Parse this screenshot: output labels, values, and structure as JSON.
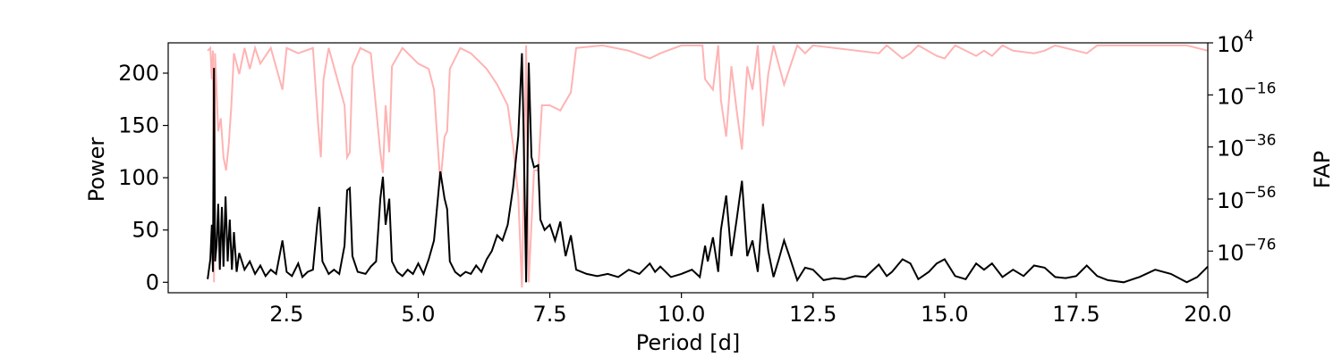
{
  "chart_data": {
    "type": "line",
    "title": "",
    "xlabel": "Period [d]",
    "ylabel": "Power",
    "ylabel_right": "FAP",
    "xlim": [
      0.25,
      20.0
    ],
    "ylim": [
      -10,
      229
    ],
    "ylim_right_log10": [
      -92,
      4
    ],
    "right_axis_scale": "log",
    "grid": false,
    "legend": "none",
    "x_ticks": [
      2.5,
      5.0,
      7.5,
      10.0,
      12.5,
      15.0,
      17.5,
      20.0
    ],
    "x_tick_labels": [
      "2.5",
      "5.0",
      "7.5",
      "10.0",
      "12.5",
      "15.0",
      "17.5",
      "20.0"
    ],
    "y_ticks": [
      0,
      50,
      100,
      150,
      200
    ],
    "y_tick_labels": [
      "0",
      "50",
      "100",
      "150",
      "200"
    ],
    "y_right_ticks_log10": [
      4,
      -16,
      -36,
      -56,
      -76
    ],
    "y_right_tick_labels": [
      {
        "base": "10",
        "exp": "4"
      },
      {
        "base": "10",
        "exp": "−16"
      },
      {
        "base": "10",
        "exp": "−36"
      },
      {
        "base": "10",
        "exp": "−56"
      },
      {
        "base": "10",
        "exp": "−76"
      }
    ],
    "series": [
      {
        "axis": "left",
        "color": "#000000",
        "points": [
          [
            1.0,
            3
          ],
          [
            1.05,
            22
          ],
          [
            1.08,
            55
          ],
          [
            1.1,
            10
          ],
          [
            1.12,
            205
          ],
          [
            1.14,
            20
          ],
          [
            1.17,
            35
          ],
          [
            1.2,
            75
          ],
          [
            1.23,
            12
          ],
          [
            1.27,
            72
          ],
          [
            1.3,
            15
          ],
          [
            1.34,
            82
          ],
          [
            1.38,
            20
          ],
          [
            1.42,
            60
          ],
          [
            1.46,
            12
          ],
          [
            1.5,
            48
          ],
          [
            1.55,
            10
          ],
          [
            1.6,
            28
          ],
          [
            1.7,
            12
          ],
          [
            1.8,
            20
          ],
          [
            1.9,
            8
          ],
          [
            2.0,
            16
          ],
          [
            2.1,
            6
          ],
          [
            2.2,
            12
          ],
          [
            2.3,
            8
          ],
          [
            2.42,
            40
          ],
          [
            2.5,
            10
          ],
          [
            2.6,
            6
          ],
          [
            2.72,
            18
          ],
          [
            2.8,
            5
          ],
          [
            2.9,
            10
          ],
          [
            3.0,
            12
          ],
          [
            3.08,
            55
          ],
          [
            3.12,
            72
          ],
          [
            3.18,
            20
          ],
          [
            3.3,
            8
          ],
          [
            3.4,
            12
          ],
          [
            3.5,
            8
          ],
          [
            3.6,
            35
          ],
          [
            3.65,
            88
          ],
          [
            3.7,
            90
          ],
          [
            3.75,
            25
          ],
          [
            3.85,
            10
          ],
          [
            4.0,
            8
          ],
          [
            4.1,
            15
          ],
          [
            4.2,
            20
          ],
          [
            4.28,
            80
          ],
          [
            4.33,
            101
          ],
          [
            4.38,
            55
          ],
          [
            4.45,
            80
          ],
          [
            4.5,
            20
          ],
          [
            4.6,
            10
          ],
          [
            4.7,
            6
          ],
          [
            4.8,
            12
          ],
          [
            4.9,
            8
          ],
          [
            5.0,
            18
          ],
          [
            5.1,
            8
          ],
          [
            5.2,
            22
          ],
          [
            5.3,
            40
          ],
          [
            5.42,
            106
          ],
          [
            5.5,
            80
          ],
          [
            5.55,
            70
          ],
          [
            5.6,
            20
          ],
          [
            5.7,
            10
          ],
          [
            5.8,
            6
          ],
          [
            5.9,
            10
          ],
          [
            6.0,
            8
          ],
          [
            6.1,
            16
          ],
          [
            6.2,
            10
          ],
          [
            6.3,
            22
          ],
          [
            6.4,
            30
          ],
          [
            6.5,
            45
          ],
          [
            6.6,
            40
          ],
          [
            6.7,
            55
          ],
          [
            6.8,
            90
          ],
          [
            6.9,
            140
          ],
          [
            6.97,
            219
          ],
          [
            7.0,
            150
          ],
          [
            7.05,
            0
          ],
          [
            7.1,
            210
          ],
          [
            7.15,
            120
          ],
          [
            7.2,
            110
          ],
          [
            7.28,
            112
          ],
          [
            7.32,
            60
          ],
          [
            7.4,
            50
          ],
          [
            7.5,
            55
          ],
          [
            7.6,
            40
          ],
          [
            7.7,
            58
          ],
          [
            7.8,
            25
          ],
          [
            7.9,
            45
          ],
          [
            8.0,
            12
          ],
          [
            8.2,
            8
          ],
          [
            8.4,
            6
          ],
          [
            8.6,
            8
          ],
          [
            8.8,
            5
          ],
          [
            9.0,
            12
          ],
          [
            9.2,
            8
          ],
          [
            9.4,
            18
          ],
          [
            9.5,
            10
          ],
          [
            9.6,
            15
          ],
          [
            9.8,
            5
          ],
          [
            10.0,
            8
          ],
          [
            10.2,
            12
          ],
          [
            10.35,
            5
          ],
          [
            10.45,
            35
          ],
          [
            10.5,
            20
          ],
          [
            10.6,
            43
          ],
          [
            10.7,
            10
          ],
          [
            10.75,
            50
          ],
          [
            10.85,
            83
          ],
          [
            10.95,
            25
          ],
          [
            11.05,
            60
          ],
          [
            11.15,
            97
          ],
          [
            11.25,
            25
          ],
          [
            11.35,
            40
          ],
          [
            11.45,
            10
          ],
          [
            11.55,
            75
          ],
          [
            11.65,
            30
          ],
          [
            11.75,
            5
          ],
          [
            11.85,
            22
          ],
          [
            11.95,
            40
          ],
          [
            12.05,
            25
          ],
          [
            12.2,
            2
          ],
          [
            12.35,
            14
          ],
          [
            12.5,
            12
          ],
          [
            12.7,
            2
          ],
          [
            12.9,
            4
          ],
          [
            13.1,
            3
          ],
          [
            13.3,
            6
          ],
          [
            13.5,
            5
          ],
          [
            13.75,
            17
          ],
          [
            13.9,
            6
          ],
          [
            14.0,
            10
          ],
          [
            14.2,
            22
          ],
          [
            14.35,
            18
          ],
          [
            14.5,
            3
          ],
          [
            14.7,
            10
          ],
          [
            14.85,
            18
          ],
          [
            15.0,
            22
          ],
          [
            15.2,
            6
          ],
          [
            15.4,
            3
          ],
          [
            15.6,
            18
          ],
          [
            15.75,
            12
          ],
          [
            15.9,
            18
          ],
          [
            16.1,
            5
          ],
          [
            16.3,
            12
          ],
          [
            16.5,
            6
          ],
          [
            16.7,
            16
          ],
          [
            16.9,
            14
          ],
          [
            17.1,
            5
          ],
          [
            17.3,
            4
          ],
          [
            17.5,
            6
          ],
          [
            17.7,
            16
          ],
          [
            17.9,
            6
          ],
          [
            18.1,
            2
          ],
          [
            18.4,
            0
          ],
          [
            18.7,
            5
          ],
          [
            19.0,
            12
          ],
          [
            19.3,
            8
          ],
          [
            19.6,
            0
          ],
          [
            19.8,
            5
          ],
          [
            20.0,
            15
          ]
        ]
      },
      {
        "axis": "right",
        "color": "#ffb3b3",
        "points_log10": [
          [
            1.0,
            1
          ],
          [
            1.05,
            2
          ],
          [
            1.08,
            -10
          ],
          [
            1.1,
            1
          ],
          [
            1.12,
            -88
          ],
          [
            1.14,
            0
          ],
          [
            1.2,
            -30
          ],
          [
            1.25,
            -25
          ],
          [
            1.3,
            -40
          ],
          [
            1.35,
            -45
          ],
          [
            1.4,
            -35
          ],
          [
            1.45,
            -20
          ],
          [
            1.5,
            0
          ],
          [
            1.6,
            -8
          ],
          [
            1.7,
            2
          ],
          [
            1.8,
            -6
          ],
          [
            1.9,
            2
          ],
          [
            2.0,
            -4
          ],
          [
            2.2,
            2
          ],
          [
            2.42,
            -14
          ],
          [
            2.5,
            2
          ],
          [
            2.72,
            0
          ],
          [
            3.0,
            2
          ],
          [
            3.1,
            -28
          ],
          [
            3.15,
            -40
          ],
          [
            3.2,
            -10
          ],
          [
            3.3,
            2
          ],
          [
            3.6,
            -20
          ],
          [
            3.65,
            -40
          ],
          [
            3.7,
            -38
          ],
          [
            3.75,
            -5
          ],
          [
            3.9,
            2
          ],
          [
            4.1,
            0
          ],
          [
            4.28,
            -38
          ],
          [
            4.33,
            -46
          ],
          [
            4.38,
            -20
          ],
          [
            4.45,
            -38
          ],
          [
            4.5,
            -5
          ],
          [
            4.7,
            2
          ],
          [
            5.0,
            -4
          ],
          [
            5.2,
            -6
          ],
          [
            5.3,
            -14
          ],
          [
            5.42,
            -50
          ],
          [
            5.5,
            -32
          ],
          [
            5.55,
            -30
          ],
          [
            5.6,
            -6
          ],
          [
            5.8,
            2
          ],
          [
            6.0,
            0
          ],
          [
            6.3,
            -6
          ],
          [
            6.5,
            -12
          ],
          [
            6.7,
            -20
          ],
          [
            6.8,
            -35
          ],
          [
            6.9,
            -55
          ],
          [
            6.97,
            -90
          ],
          [
            7.05,
            3
          ],
          [
            7.1,
            -88
          ],
          [
            7.2,
            -45
          ],
          [
            7.28,
            -45
          ],
          [
            7.35,
            -20
          ],
          [
            7.5,
            -20
          ],
          [
            7.7,
            -22
          ],
          [
            7.9,
            -15
          ],
          [
            8.0,
            2
          ],
          [
            8.5,
            3
          ],
          [
            9.0,
            1
          ],
          [
            9.4,
            -2
          ],
          [
            9.6,
            0
          ],
          [
            10.0,
            3
          ],
          [
            10.4,
            3
          ],
          [
            10.45,
            -10
          ],
          [
            10.6,
            -14
          ],
          [
            10.7,
            3
          ],
          [
            10.75,
            -18
          ],
          [
            10.85,
            -32
          ],
          [
            10.95,
            -5
          ],
          [
            11.05,
            -22
          ],
          [
            11.15,
            -37
          ],
          [
            11.25,
            -5
          ],
          [
            11.35,
            -14
          ],
          [
            11.45,
            3
          ],
          [
            11.55,
            -28
          ],
          [
            11.65,
            -8
          ],
          [
            11.75,
            3
          ],
          [
            11.95,
            -12
          ],
          [
            12.05,
            -6
          ],
          [
            12.2,
            3
          ],
          [
            12.35,
            0
          ],
          [
            12.5,
            3
          ],
          [
            13.75,
            0
          ],
          [
            13.9,
            3
          ],
          [
            14.2,
            -2
          ],
          [
            14.35,
            0
          ],
          [
            14.5,
            3
          ],
          [
            14.85,
            -1
          ],
          [
            15.0,
            -2
          ],
          [
            15.2,
            3
          ],
          [
            15.6,
            -1
          ],
          [
            15.75,
            1
          ],
          [
            15.9,
            -1
          ],
          [
            16.1,
            3
          ],
          [
            16.3,
            1
          ],
          [
            16.7,
            0
          ],
          [
            16.9,
            1
          ],
          [
            17.1,
            3
          ],
          [
            17.7,
            0
          ],
          [
            17.9,
            3
          ],
          [
            19.6,
            3
          ],
          [
            19.8,
            2
          ],
          [
            20.0,
            1
          ]
        ]
      }
    ]
  }
}
